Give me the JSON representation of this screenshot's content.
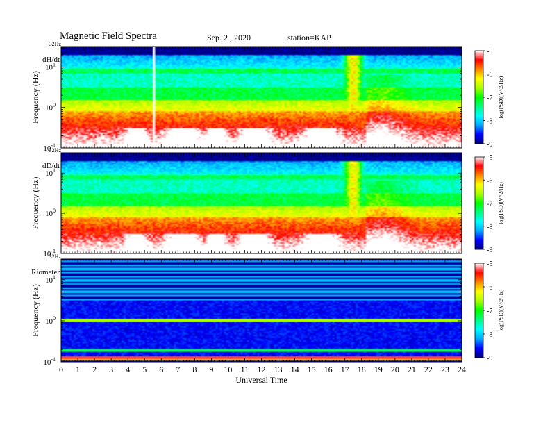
{
  "header": {
    "title": "Magnetic Field Spectra",
    "date": "Sep. 2 , 2020",
    "station": "station=KAP"
  },
  "chart_data": {
    "type": "heatmap",
    "xlabel": "Universal Time",
    "xlim": [
      0,
      24
    ],
    "x_ticks": [
      "0",
      "1",
      "2",
      "3",
      "4",
      "5",
      "6",
      "7",
      "8",
      "9",
      "10",
      "11",
      "12",
      "13",
      "14",
      "15",
      "16",
      "17",
      "18",
      "19",
      "20",
      "21",
      "22",
      "23",
      "24"
    ],
    "ylabel": "Frequency (Hz)",
    "y_scale": "log",
    "ylim": [
      0.1,
      32
    ],
    "y_top_label": "32Hz",
    "y_ticks": [
      {
        "value": 10,
        "base": "10",
        "exp": "1"
      },
      {
        "value": 1,
        "base": "10",
        "exp": "0"
      },
      {
        "value": 0.1,
        "base": "10",
        "exp": "-1"
      }
    ],
    "colorbar": {
      "label": "log(PSD)(V^2/Hz)",
      "range": [
        -9,
        -5
      ],
      "ticks": [
        "-5",
        "-6",
        "-7",
        "-8",
        "-9"
      ],
      "colormap": [
        "#000080",
        "#0000ff",
        "#00aaff",
        "#00ffff",
        "#00ff80",
        "#00ff00",
        "#aaff00",
        "#ffff00",
        "#ff8800",
        "#ff0000",
        "#ffffff"
      ]
    },
    "panels": [
      {
        "name": "dH/dt",
        "features": [
          {
            "kind": "high-frequency top band",
            "freq_range_hz": [
              20,
              32
            ],
            "level": -9
          },
          {
            "kind": "background",
            "freq_range_hz": [
              2,
              20
            ],
            "level": -7.5
          },
          {
            "kind": "background",
            "freq_range_hz": [
              0.1,
              1
            ],
            "level": -6
          },
          {
            "kind": "broadband burst",
            "ut_range": [
              16.8,
              18.2
            ],
            "level": -6
          },
          {
            "kind": "data gap line",
            "ut": 5.5
          }
        ]
      },
      {
        "name": "dD/dt",
        "features": [
          {
            "kind": "high-frequency top band",
            "freq_range_hz": [
              20,
              32
            ],
            "level": -9
          },
          {
            "kind": "background",
            "freq_range_hz": [
              2,
              20
            ],
            "level": -7.5
          },
          {
            "kind": "background",
            "freq_range_hz": [
              0.1,
              1
            ],
            "level": -6
          },
          {
            "kind": "broadband burst",
            "ut_range": [
              16.8,
              18.2
            ],
            "level": -6
          }
        ]
      },
      {
        "name": "Riometer",
        "features": [
          {
            "kind": "horizontal line bands",
            "freq_range_hz": [
              3,
              32
            ],
            "level": -8.5
          },
          {
            "kind": "orange line",
            "freq_hz": 1.0,
            "level": -6.5
          },
          {
            "kind": "red/magenta bands",
            "freq_range_hz": [
              0.1,
              0.15
            ],
            "level": -6
          }
        ]
      }
    ]
  }
}
